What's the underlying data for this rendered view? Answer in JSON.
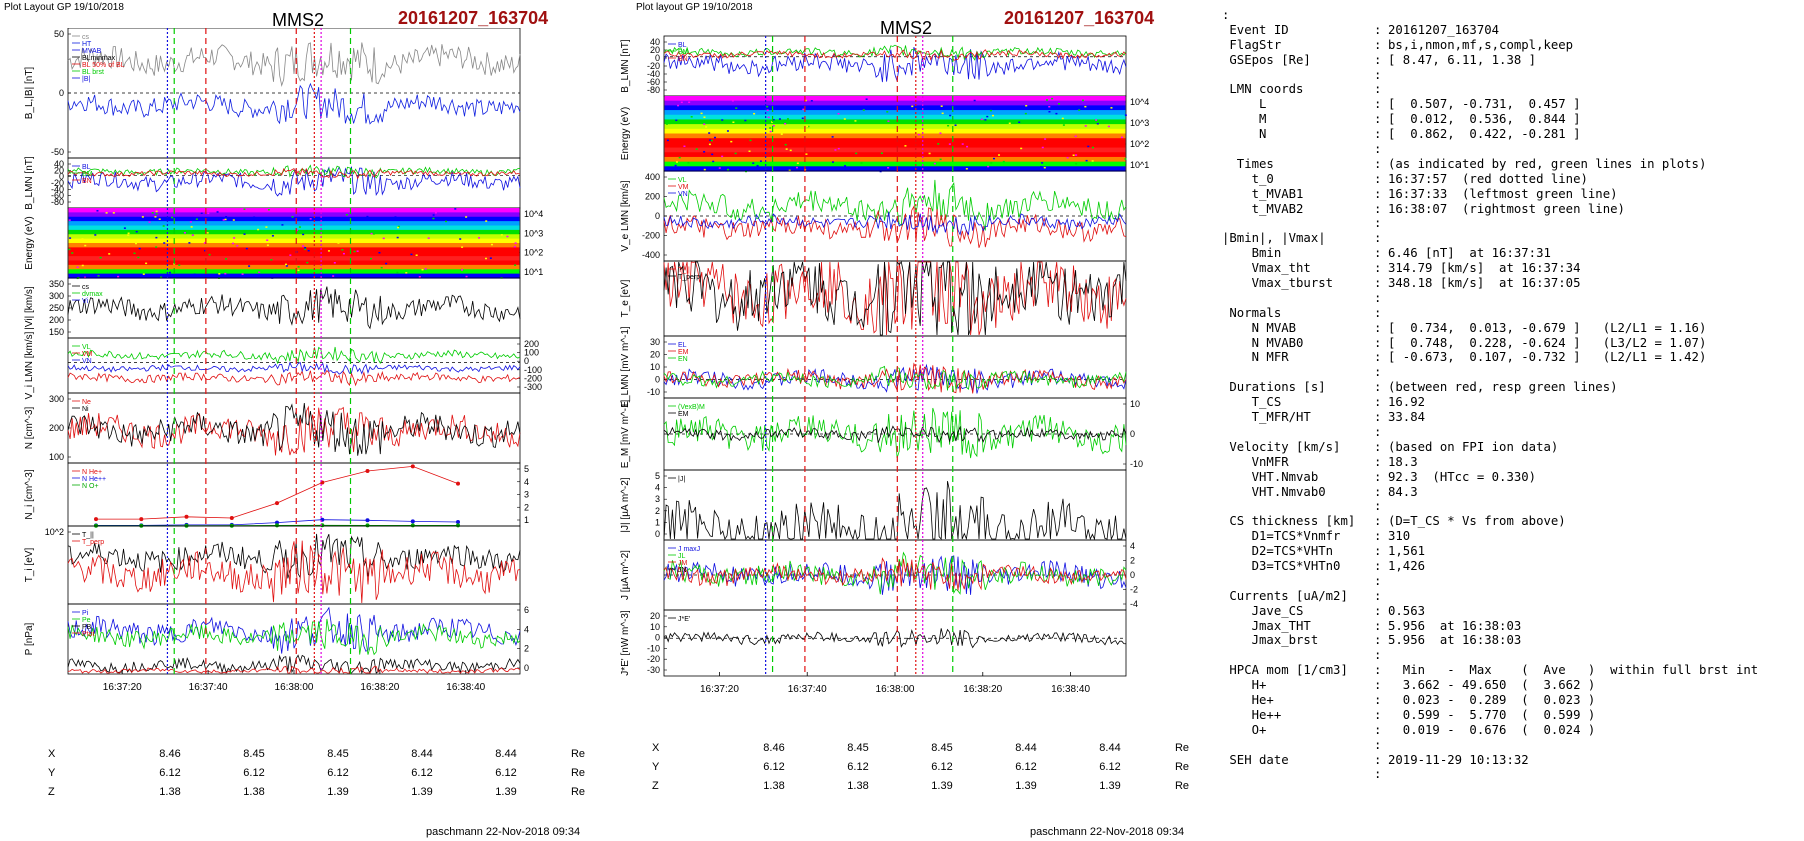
{
  "left": {
    "header": "Plot Layout GP 19/10/2018",
    "spacecraft": "MMS2",
    "event": "20161207_163704",
    "footer": "paschmann 22-Nov-2018 09:34",
    "xticks": [
      "16:37:20",
      "16:37:40",
      "16:38:00",
      "16:38:20",
      "16:38:40"
    ],
    "coords": [
      {
        "label": "X",
        "values": [
          "8.46",
          "8.45",
          "8.45",
          "8.44",
          "8.44"
        ],
        "unit": "Re"
      },
      {
        "label": "Y",
        "values": [
          "6.12",
          "6.12",
          "6.12",
          "6.12",
          "6.12"
        ],
        "unit": "Re"
      },
      {
        "label": "Z",
        "values": [
          "1.38",
          "1.38",
          "1.39",
          "1.39",
          "1.39"
        ],
        "unit": "Re"
      }
    ]
  },
  "middle": {
    "header": "Plot layout GP 19/10/2018",
    "spacecraft": "MMS2",
    "event": "20161207_163704",
    "footer": "paschmann 22-Nov-2018 09:34",
    "xticks": [
      "16:37:20",
      "16:37:40",
      "16:38:00",
      "16:38:20",
      "16:38:40"
    ],
    "coords": [
      {
        "label": "X",
        "values": [
          "8.46",
          "8.45",
          "8.45",
          "8.44",
          "8.44"
        ],
        "unit": "Re"
      },
      {
        "label": "Y",
        "values": [
          "6.12",
          "6.12",
          "6.12",
          "6.12",
          "6.12"
        ],
        "unit": "Re"
      },
      {
        "label": "Z",
        "values": [
          "1.38",
          "1.38",
          "1.39",
          "1.39",
          "1.39"
        ],
        "unit": "Re"
      }
    ]
  },
  "info_rows": [
    {
      "k": ":",
      "c": "",
      "v": ""
    },
    {
      "k": " Event ID",
      "c": ":",
      "v": "20161207_163704"
    },
    {
      "k": " FlagStr",
      "c": ":",
      "v": "bs,i,nmon,mf,s,compl,keep"
    },
    {
      "k": " GSEpos [Re]",
      "c": ":",
      "v": "[ 8.47, 6.11, 1.38 ]"
    },
    {
      "k": "",
      "c": ":",
      "v": ""
    },
    {
      "k": " LMN coords",
      "c": ":",
      "v": ""
    },
    {
      "k": "     L",
      "c": ":",
      "v": "[  0.507, -0.731,  0.457 ]"
    },
    {
      "k": "     M",
      "c": ":",
      "v": "[  0.012,  0.536,  0.844 ]"
    },
    {
      "k": "     N",
      "c": ":",
      "v": "[  0.862,  0.422, -0.281 ]"
    },
    {
      "k": "",
      "c": ":",
      "v": ""
    },
    {
      "k": "  Times",
      "c": ":",
      "v": "(as indicated by red, green lines in plots)"
    },
    {
      "k": "    t_0",
      "c": ":",
      "v": "16:37:57  (red dotted line)"
    },
    {
      "k": "    t_MVAB1",
      "c": ":",
      "v": "16:37:33  (leftmost green line)"
    },
    {
      "k": "    t_MVAB2",
      "c": ":",
      "v": "16:38:07  (rightmost green line)"
    },
    {
      "k": "",
      "c": ":",
      "v": ""
    },
    {
      "k": "|Bmin|, |Vmax|",
      "c": ":",
      "v": ""
    },
    {
      "k": "    Bmin",
      "c": ":",
      "v": "6.46 [nT]  at 16:37:31"
    },
    {
      "k": "    Vmax_tht",
      "c": ":",
      "v": "314.79 [km/s]  at 16:37:34"
    },
    {
      "k": "    Vmax_tburst",
      "c": ":",
      "v": "348.18 [km/s]  at 16:37:05"
    },
    {
      "k": "",
      "c": ":",
      "v": ""
    },
    {
      "k": " Normals",
      "c": ":",
      "v": ""
    },
    {
      "k": "    N MVAB",
      "c": ":",
      "v": "[  0.734,  0.013, -0.679 ]   (L2/L1 = 1.16)"
    },
    {
      "k": "    N MVAB0",
      "c": ":",
      "v": "[  0.748,  0.228, -0.624 ]   (L3/L2 = 1.07)"
    },
    {
      "k": "    N MFR",
      "c": ":",
      "v": "[ -0.673,  0.107, -0.732 ]   (L2/L1 = 1.42)"
    },
    {
      "k": "",
      "c": ":",
      "v": ""
    },
    {
      "k": " Durations [s]",
      "c": ":",
      "v": "(between red, resp green lines)"
    },
    {
      "k": "    T_CS",
      "c": ":",
      "v": "16.92"
    },
    {
      "k": "    T_MFR/HT",
      "c": ":",
      "v": "33.84"
    },
    {
      "k": "",
      "c": ":",
      "v": ""
    },
    {
      "k": " Velocity [km/s]",
      "c": ":",
      "v": "(based on FPI ion data)"
    },
    {
      "k": "    VnMFR",
      "c": ":",
      "v": "18.3"
    },
    {
      "k": "    VHT.Nmvab",
      "c": ":",
      "v": "92.3  (HTcc = 0.330)"
    },
    {
      "k": "    VHT.Nmvab0",
      "c": ":",
      "v": "84.3"
    },
    {
      "k": "",
      "c": ":",
      "v": ""
    },
    {
      "k": " CS thickness [km]",
      "c": ":",
      "v": "(D=T_CS * Vs from above)"
    },
    {
      "k": "    D1=TCS*Vnmfr",
      "c": ":",
      "v": "310"
    },
    {
      "k": "    D2=TCS*VHTn",
      "c": ":",
      "v": "1,561"
    },
    {
      "k": "    D3=TCS*VHTn0",
      "c": ":",
      "v": "1,426"
    },
    {
      "k": "",
      "c": ":",
      "v": ""
    },
    {
      "k": " Currents [uA/m2]",
      "c": ":",
      "v": ""
    },
    {
      "k": "    Jave_CS",
      "c": ":",
      "v": "0.563"
    },
    {
      "k": "    Jmax_THT",
      "c": ":",
      "v": "5.956  at 16:38:03"
    },
    {
      "k": "    Jmax_brst",
      "c": ":",
      "v": "5.956  at 16:38:03"
    },
    {
      "k": "",
      "c": ":",
      "v": ""
    },
    {
      "k": " HPCA mom [1/cm3]",
      "c": ":",
      "v": "  Min   -  Max    (  Ave   )  within full brst int"
    },
    {
      "k": "    H+",
      "c": ":",
      "v": "  3.662 - 49.650  (  3.662 )"
    },
    {
      "k": "    He+",
      "c": ":",
      "v": "  0.023 -  0.289  (  0.023 )"
    },
    {
      "k": "    He++",
      "c": ":",
      "v": "  0.599 -  5.770  (  0.599 )"
    },
    {
      "k": "    O+",
      "c": ":",
      "v": "  0.019 -  0.676  (  0.024 )"
    },
    {
      "k": "",
      "c": ":",
      "v": ""
    },
    {
      "k": " SEH date",
      "c": ":",
      "v": "2019-11-29 10:13:32"
    },
    {
      "k": "",
      "c": ":",
      "v": ""
    }
  ],
  "colors": {
    "event": "#a01010",
    "red": "#e01010",
    "green": "#00cc00",
    "blue": "#1010e0",
    "magenta": "#e000e0"
  },
  "chart_data": [
    {
      "type": "line",
      "title": "MMS2",
      "time_axis": {
        "ticks": [
          "16:37:20",
          "16:37:40",
          "16:38:00",
          "16:38:20",
          "16:38:40"
        ]
      },
      "panels": [
        {
          "ylabel": "B_L,|B| [nT]",
          "yticks": [
            "50",
            "0",
            "-50"
          ],
          "ylim": [
            -80,
            80
          ],
          "legend": [
            "cs",
            "HT",
            "MVAB",
            "BLminmax",
            "BL 50% of BL",
            "BL brst",
            "|B|"
          ],
          "series": [
            {
              "name": "|B|",
              "color": "#888888",
              "level": 40,
              "amp": 15
            },
            {
              "name": "BL",
              "color": "#1020e0",
              "level": -15,
              "amp": 12
            }
          ]
        },
        {
          "ylabel": "B_LMN [nT]",
          "yticks": [
            "40",
            "20",
            "0",
            "-20",
            "-40",
            "-60",
            "-80"
          ],
          "ylim": [
            -85,
            45
          ],
          "legend": [
            "BL",
            "BM",
            "BN"
          ],
          "series": [
            {
              "name": "BL",
              "color": "#1010e0",
              "level": -15,
              "amp": 20
            },
            {
              "name": "BM",
              "color": "#00cc00",
              "level": 10,
              "amp": 8
            },
            {
              "name": "BN",
              "color": "#e01010",
              "level": 5,
              "amp": 6
            }
          ]
        },
        {
          "ylabel": "Energy (eV)",
          "type": "heatmap",
          "yticks": [
            "10^4",
            "10^3",
            "10^2",
            "10^1"
          ]
        },
        {
          "ylabel": "|Vi| [km/s]",
          "yticks": [
            "350",
            "300",
            "250",
            "200",
            "150"
          ],
          "ylim": [
            120,
            360
          ],
          "legend": [
            "cs",
            "dvmax",
            "Vi"
          ],
          "series": [
            {
              "name": "|Vi|",
              "color": "#000000",
              "level": 240,
              "amp": 40
            }
          ]
        },
        {
          "ylabel": "V_i LMN [km/s]",
          "yticks": [
            "200",
            "100",
            "0",
            "-100",
            "-200",
            "-300"
          ],
          "ylim": [
            -320,
            260
          ],
          "legend": [
            "VL",
            "VM",
            "VN"
          ],
          "series": [
            {
              "name": "VL",
              "color": "#00cc00",
              "level": 80,
              "amp": 40
            },
            {
              "name": "VN",
              "color": "#e01010",
              "level": -160,
              "amp": 40
            },
            {
              "name": "VM",
              "color": "#1010e0",
              "level": -60,
              "amp": 30
            }
          ]
        },
        {
          "ylabel": "N [cm^-3]",
          "yticks": [
            "300",
            "200",
            "100"
          ],
          "ylim": [
            0,
            320
          ],
          "legend": [
            "Ne",
            "Ni"
          ],
          "series": [
            {
              "name": "Ne",
              "color": "#e01010",
              "level": 150,
              "amp": 60
            },
            {
              "name": "Ni",
              "color": "#000000",
              "level": 150,
              "amp": 60
            }
          ]
        },
        {
          "ylabel": "N_i [cm^-3]",
          "yticks": [
            "5",
            "4",
            "3",
            "2",
            "1"
          ],
          "ylim": [
            0,
            5.5
          ],
          "legend": [
            "N He+",
            "N He++",
            "N O+"
          ],
          "series": [
            {
              "name": "N He++",
              "color": "#e01010",
              "values": [
                0.6,
                0.6,
                0.8,
                0.7,
                2.0,
                3.8,
                4.8,
                5.2,
                3.7
              ]
            },
            {
              "name": "N O+",
              "color": "#1010e0",
              "values": [
                0.05,
                0.05,
                0.1,
                0.1,
                0.3,
                0.55,
                0.5,
                0.4,
                0.35
              ]
            },
            {
              "name": "N He+",
              "color": "#00aa00",
              "values": [
                0.02,
                0.02,
                0.02,
                0.03,
                0.05,
                0.06,
                0.05,
                0.05,
                0.05
              ]
            }
          ]
        },
        {
          "ylabel": "T_i [eV]",
          "yticks": [
            "10^2"
          ],
          "legend": [
            "T_||",
            "T_perp"
          ],
          "series": [
            {
              "name": "Ti_perp",
              "color": "#000000",
              "level": 60,
              "amp": 15
            },
            {
              "name": "Ti_par",
              "color": "#e01010",
              "level": 40,
              "amp": 20
            }
          ]
        },
        {
          "ylabel": "P [nPa]",
          "yticks": [
            "6",
            "4",
            "2",
            "0"
          ],
          "ylim": [
            0,
            6.5
          ],
          "legend": [
            "Pi",
            "Pe",
            "PB",
            "Ptot"
          ],
          "series": [
            {
              "name": "Ptot",
              "color": "#1010e0",
              "level": 4,
              "amp": 1
            },
            {
              "name": "Pi",
              "color": "#00cc00",
              "level": 3.5,
              "amp": 0.8
            },
            {
              "name": "PB",
              "color": "#000000",
              "level": 0.8,
              "amp": 0.5
            },
            {
              "name": "Pe",
              "color": "#e01010",
              "level": 0.3,
              "amp": 0.2
            }
          ]
        }
      ]
    },
    {
      "type": "line",
      "title": "MMS2",
      "time_axis": {
        "ticks": [
          "16:37:20",
          "16:37:40",
          "16:38:00",
          "16:38:20",
          "16:38:40"
        ]
      },
      "panels": [
        {
          "ylabel": "B_LMN [nT]",
          "yticks": [
            "40",
            "20",
            "0",
            "-20",
            "-40",
            "-60",
            "-80"
          ],
          "ylim": [
            -85,
            45
          ],
          "legend": [
            "BL",
            "BM",
            "BN"
          ],
          "series": [
            {
              "name": "BL",
              "color": "#1010e0",
              "level": -15,
              "amp": 20
            },
            {
              "name": "BM",
              "color": "#00cc00",
              "level": 10,
              "amp": 8
            },
            {
              "name": "BN",
              "color": "#e01010",
              "level": 5,
              "amp": 6
            }
          ]
        },
        {
          "ylabel": "Energy (eV)",
          "type": "heatmap",
          "yticks": [
            "10^4",
            "10^3",
            "10^2",
            "10^1"
          ]
        },
        {
          "ylabel": "V_e LMN [km/s]",
          "yticks": [
            "400",
            "200",
            "0",
            "-200",
            "-400"
          ],
          "ylim": [
            -450,
            450
          ],
          "legend": [
            "VL",
            "VM",
            "VN"
          ],
          "series": [
            {
              "name": "VL",
              "color": "#00cc00",
              "level": 100,
              "amp": 120
            },
            {
              "name": "VN",
              "color": "#e01010",
              "level": -120,
              "amp": 100
            },
            {
              "name": "VM",
              "color": "#1010e0",
              "level": -60,
              "amp": 60
            }
          ]
        },
        {
          "ylabel": "T_e [eV]",
          "yticks": [],
          "legend": [
            "T_||",
            "T_perp"
          ],
          "series": [
            {
              "name": "Te_par",
              "color": "#e01010",
              "level": 60,
              "amp": 40
            },
            {
              "name": "Te_perp",
              "color": "#000000",
              "level": 60,
              "amp": 40
            }
          ]
        },
        {
          "ylabel": "E_LMN [mV m^-1]",
          "yticks": [
            "30",
            "20",
            "10",
            "0",
            "-10"
          ],
          "ylim": [
            -15,
            35
          ],
          "legend": [
            "EL",
            "EM",
            "EN"
          ],
          "series": [
            {
              "name": "EL",
              "color": "#1010e0",
              "level": 0,
              "amp": 6
            },
            {
              "name": "EN",
              "color": "#e01010",
              "level": 0,
              "amp": 6
            },
            {
              "name": "EM",
              "color": "#00cc00",
              "level": 0,
              "amp": 5
            }
          ]
        },
        {
          "ylabel": "E_M [mV m^-1]",
          "yticks": [
            "10",
            "0",
            "-10"
          ],
          "ylim": [
            -15,
            15
          ],
          "legend": [
            "(VexB)M",
            "EM"
          ],
          "series": [
            {
              "name": "EM",
              "color": "#00cc00",
              "level": 0,
              "amp": 6
            },
            {
              "name": "(VexB)M",
              "color": "#000000",
              "level": 0,
              "amp": 2
            }
          ]
        },
        {
          "ylabel": "|J| [µA m^-2]",
          "yticks": [
            "5",
            "4",
            "3",
            "2",
            "1",
            "0"
          ],
          "ylim": [
            0,
            6
          ],
          "legend": [
            "|J|"
          ],
          "series": [
            {
              "name": "|J|",
              "color": "#000000",
              "level": 1,
              "amp": 2
            }
          ]
        },
        {
          "ylabel": "J [µA m^-2]",
          "yticks": [
            "4",
            "2",
            "0",
            "-2",
            "-4"
          ],
          "ylim": [
            -5,
            5
          ],
          "legend": [
            "J maxJ",
            "JL",
            "JM",
            "JN"
          ],
          "series": [
            {
              "name": "JL",
              "color": "#1010e0",
              "level": 0,
              "amp": 1.5
            },
            {
              "name": "JM",
              "color": "#00cc00",
              "level": 0,
              "amp": 1.5
            },
            {
              "name": "JN",
              "color": "#e01010",
              "level": 0,
              "amp": 1.2
            }
          ]
        },
        {
          "ylabel": "J*E' [nW m^-3]",
          "yticks": [
            "20",
            "10",
            "0",
            "-10",
            "-20",
            "-30"
          ],
          "ylim": [
            -32,
            24
          ],
          "legend": [
            "J*E'"
          ],
          "series": [
            {
              "name": "J*E'",
              "color": "#000000",
              "level": 0,
              "amp": 4
            }
          ]
        }
      ]
    }
  ]
}
